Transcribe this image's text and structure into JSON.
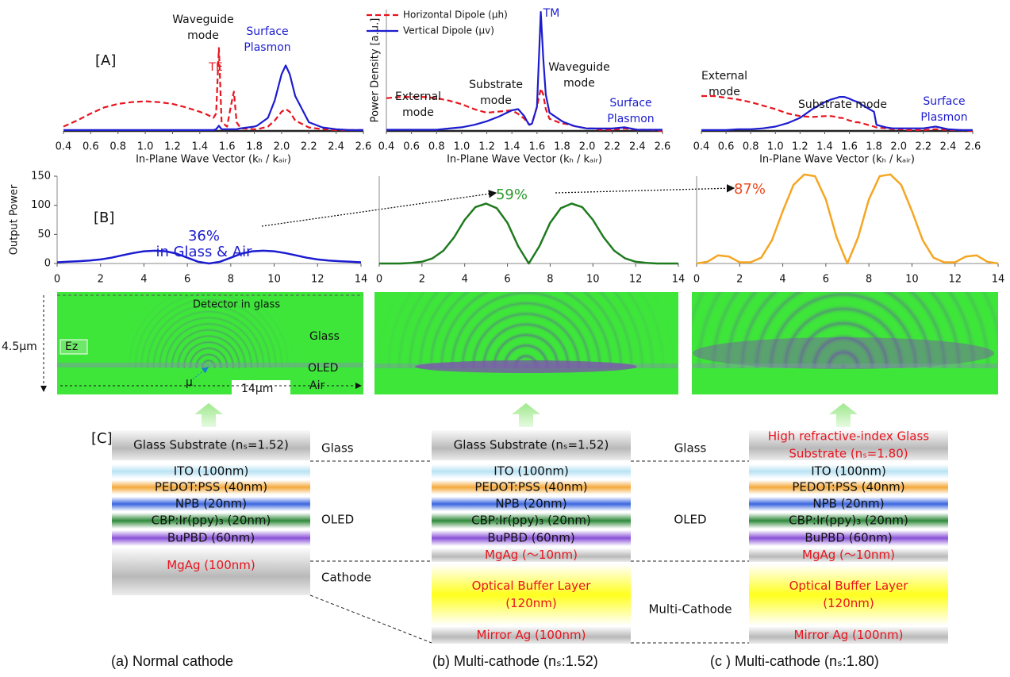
{
  "panel_labels": [
    "[A]",
    "[B]",
    "[C]"
  ],
  "chart_data": [
    {
      "type": "line",
      "xlabel": "In-Plane Wave Vector  (kₕ / kₐᵢᵣ)",
      "x": [
        0.4,
        0.5,
        0.6,
        0.7,
        0.8,
        0.9,
        1.0,
        1.1,
        1.2,
        1.3,
        1.4,
        1.45,
        1.5,
        1.52,
        1.54,
        1.56,
        1.6,
        1.63,
        1.65,
        1.67,
        1.7,
        1.8,
        1.82,
        1.9,
        1.95,
        2.0,
        2.03,
        2.06,
        2.1,
        2.2,
        2.3,
        2.4,
        2.5,
        2.6
      ],
      "xlim": [
        0.4,
        2.6
      ],
      "xticks": [
        0.4,
        0.6,
        0.8,
        {
          "value": 1,
          "label": "1.0"
        },
        1.2,
        1.4,
        1.6,
        1.8,
        {
          "value": 2,
          "label": "2.0"
        },
        2.2,
        2.4,
        2.6
      ],
      "ylim": [
        0,
        1
      ],
      "series": [
        {
          "color": "#e8141e",
          "dashed": true,
          "values": [
            0.05,
            0.12,
            0.2,
            0.27,
            0.31,
            0.33,
            0.34,
            0.33,
            0.31,
            0.27,
            0.22,
            0.19,
            0.15,
            0.2,
            0.95,
            0.1,
            0.05,
            0.3,
            0.45,
            0.1,
            0.03,
            0.02,
            0.02,
            0.05,
            0.12,
            0.22,
            0.25,
            0.22,
            0.12,
            0.04,
            0.02,
            0.01,
            0.01,
            0.01
          ]
        },
        {
          "color": "#1c1cd0",
          "dashed": false,
          "values": [
            0.01,
            0.01,
            0.01,
            0.01,
            0.01,
            0.01,
            0.01,
            0.01,
            0.01,
            0.01,
            0.01,
            0.01,
            0.01,
            0.02,
            0.06,
            0.02,
            0.02,
            0.02,
            0.02,
            0.02,
            0.03,
            0.05,
            0.06,
            0.15,
            0.35,
            0.65,
            0.75,
            0.65,
            0.4,
            0.1,
            0.04,
            0.02,
            0.01,
            0.01
          ]
        }
      ],
      "annotations": [
        {
          "lines": [
            "Waveguide",
            "mode"
          ],
          "color": "#111111"
        },
        {
          "lines": [
            "TE"
          ],
          "color": "#e8141e"
        },
        {
          "lines": [
            "Surface",
            "Plasmon"
          ],
          "color": "#1c1cd0"
        }
      ]
    },
    {
      "type": "line",
      "xlabel": "In-Plane Wave Vector  (kₕ / kₐᵢᵣ)",
      "ylabel": "Power Density [a.u.]",
      "show_y_axis": true,
      "legend": "upper left",
      "x": [
        0.4,
        0.5,
        0.6,
        0.7,
        0.8,
        0.9,
        1.0,
        1.1,
        1.2,
        1.3,
        1.4,
        1.45,
        1.5,
        1.52,
        1.54,
        1.56,
        1.6,
        1.63,
        1.65,
        1.67,
        1.7,
        1.8,
        1.82,
        1.9,
        1.95,
        2.0,
        2.03,
        2.06,
        2.1,
        2.2,
        2.3,
        2.4,
        2.5,
        2.6
      ],
      "xlim": [
        0.4,
        2.6
      ],
      "xticks": [
        0.4,
        0.6,
        0.8,
        {
          "value": 1,
          "label": "1.0"
        },
        1.2,
        1.4,
        1.6,
        1.8,
        {
          "value": 2,
          "label": "2.0"
        },
        2.2,
        2.4,
        2.6
      ],
      "ylim": [
        0,
        1
      ],
      "series": [
        {
          "name": "Horizontal Dipole (µh)",
          "color": "#e8141e",
          "dashed": true,
          "values": [
            0.27,
            0.28,
            0.28,
            0.28,
            0.27,
            0.25,
            0.22,
            0.18,
            0.15,
            0.16,
            0.17,
            0.14,
            0.1,
            0.07,
            0.05,
            0.06,
            0.2,
            0.35,
            0.3,
            0.18,
            0.1,
            0.06,
            0.06,
            0.04,
            0.03,
            0.02,
            0.02,
            0.02,
            0.01,
            0.01,
            0.02,
            0.01,
            0.01,
            0.0
          ]
        },
        {
          "name": "Vertical Dipole (µv)",
          "color": "#1c1cd0",
          "dashed": false,
          "values": [
            0.01,
            0.01,
            0.01,
            0.01,
            0.01,
            0.02,
            0.03,
            0.05,
            0.08,
            0.12,
            0.17,
            0.18,
            0.12,
            0.08,
            0.05,
            0.06,
            0.2,
            0.98,
            0.6,
            0.3,
            0.15,
            0.08,
            0.07,
            0.04,
            0.03,
            0.02,
            0.02,
            0.02,
            0.02,
            0.02,
            0.03,
            0.01,
            0.01,
            0.01
          ]
        }
      ],
      "annotations": [
        {
          "lines": [
            "TM"
          ],
          "color": "#1c1cd0"
        },
        {
          "lines": [
            "Waveguide",
            "mode"
          ],
          "color": "#111111"
        },
        {
          "lines": [
            "External",
            "mode"
          ],
          "color": "#111111"
        },
        {
          "lines": [
            "Substrate",
            "mode"
          ],
          "color": "#111111"
        },
        {
          "lines": [
            "Surface",
            "Plasmon"
          ],
          "color": "#1c1cd0"
        }
      ]
    },
    {
      "type": "line",
      "xlabel": "In-Plane Wave Vector  (kₕ / kₐᵢᵣ)",
      "x": [
        0.4,
        0.5,
        0.6,
        0.7,
        0.8,
        0.9,
        1.0,
        1.1,
        1.2,
        1.3,
        1.4,
        1.45,
        1.5,
        1.52,
        1.54,
        1.56,
        1.6,
        1.63,
        1.65,
        1.67,
        1.7,
        1.8,
        1.82,
        1.9,
        1.95,
        2.0,
        2.03,
        2.06,
        2.1,
        2.2,
        2.3,
        2.4,
        2.5,
        2.6
      ],
      "xlim": [
        0.4,
        2.6
      ],
      "xticks": [
        0.4,
        0.6,
        0.8,
        {
          "value": 1,
          "label": "1.0"
        },
        1.2,
        1.4,
        1.6,
        1.8,
        {
          "value": 2,
          "label": "2.0"
        },
        2.2,
        2.4,
        2.6
      ],
      "ylim": [
        0,
        1
      ],
      "series": [
        {
          "color": "#e8141e",
          "dashed": true,
          "values": [
            0.4,
            0.4,
            0.38,
            0.36,
            0.33,
            0.29,
            0.25,
            0.2,
            0.17,
            0.16,
            0.17,
            0.17,
            0.16,
            0.15,
            0.15,
            0.14,
            0.12,
            0.11,
            0.1,
            0.1,
            0.09,
            0.05,
            0.04,
            0.03,
            0.02,
            0.02,
            0.02,
            0.01,
            0.01,
            0.01,
            0.02,
            0.01,
            0.01,
            0.0
          ]
        },
        {
          "color": "#1c1cd0",
          "dashed": false,
          "values": [
            0.01,
            0.01,
            0.01,
            0.02,
            0.02,
            0.03,
            0.05,
            0.09,
            0.15,
            0.25,
            0.33,
            0.36,
            0.38,
            0.39,
            0.39,
            0.39,
            0.37,
            0.35,
            0.34,
            0.33,
            0.3,
            0.22,
            0.07,
            0.04,
            0.03,
            0.03,
            0.03,
            0.03,
            0.03,
            0.03,
            0.05,
            0.02,
            0.01,
            0.01
          ]
        }
      ],
      "annotations": [
        {
          "lines": [
            "External",
            "mode"
          ],
          "color": "#111111"
        },
        {
          "lines": [
            "Substrate mode"
          ],
          "color": "#111111"
        },
        {
          "lines": [
            "Surface",
            "Plasmon"
          ],
          "color": "#1c1cd0"
        }
      ]
    },
    {
      "type": "line",
      "ylabel": "Output Power",
      "show_y_axis": true,
      "x": [
        0,
        0.5,
        1,
        1.5,
        2,
        2.5,
        3,
        3.5,
        4,
        4.5,
        5,
        5.5,
        6,
        6.5,
        7,
        7.5,
        8,
        8.5,
        9,
        9.5,
        10,
        10.5,
        11,
        11.5,
        12,
        12.5,
        13,
        13.5,
        14
      ],
      "xlim": [
        0,
        14
      ],
      "xticks": [
        0,
        2,
        4,
        6,
        8,
        10,
        12,
        14
      ],
      "ylim": [
        0,
        150
      ],
      "yticks": [
        0,
        50,
        100,
        150
      ],
      "series": [
        {
          "color": "#1c1cd0",
          "dashed": false,
          "values": [
            2,
            3,
            4,
            5,
            7,
            10,
            14,
            18,
            21,
            22,
            21,
            17,
            10,
            3,
            0,
            3,
            10,
            17,
            21,
            22,
            21,
            18,
            14,
            10,
            7,
            5,
            4,
            3,
            2
          ]
        }
      ],
      "annotations": [
        {
          "lines": [
            "36%",
            "in Glass & Air"
          ],
          "color": "#1c1cd0"
        }
      ]
    },
    {
      "type": "line",
      "show_y_axis": true,
      "x": [
        0,
        0.5,
        1,
        1.5,
        2,
        2.5,
        3,
        3.5,
        4,
        4.5,
        5,
        5.5,
        6,
        6.5,
        7,
        7.5,
        8,
        8.5,
        9,
        9.5,
        10,
        10.5,
        11,
        11.5,
        12,
        12.5,
        13,
        13.5,
        14
      ],
      "xlim": [
        0,
        14
      ],
      "xticks": [
        0,
        2,
        4,
        6,
        8,
        10,
        12,
        14
      ],
      "ylim": [
        0,
        150
      ],
      "series": [
        {
          "color": "#1f7a1f",
          "dashed": false,
          "values": [
            0,
            0,
            0,
            1,
            3,
            9,
            22,
            45,
            75,
            97,
            103,
            95,
            70,
            30,
            0,
            30,
            70,
            95,
            103,
            97,
            75,
            45,
            22,
            9,
            3,
            1,
            0,
            0,
            0
          ]
        }
      ],
      "annotations": [
        {
          "lines": [
            "59%"
          ],
          "color": "#2e9a2e"
        }
      ]
    },
    {
      "type": "line",
      "show_y_axis": true,
      "x": [
        0,
        0.5,
        1,
        1.5,
        2,
        2.5,
        3,
        3.5,
        4,
        4.5,
        5,
        5.5,
        6,
        6.5,
        7,
        7.5,
        8,
        8.5,
        9,
        9.5,
        10,
        10.5,
        11,
        11.5,
        12,
        12.5,
        13,
        13.5,
        14
      ],
      "xlim": [
        0,
        14
      ],
      "xticks": [
        0,
        2,
        4,
        6,
        8,
        10,
        12,
        14
      ],
      "ylim": [
        0,
        150
      ],
      "series": [
        {
          "color": "#f5a623",
          "dashed": false,
          "values": [
            0,
            3,
            14,
            12,
            2,
            2,
            10,
            40,
            90,
            135,
            153,
            150,
            110,
            45,
            0,
            45,
            110,
            150,
            153,
            135,
            90,
            40,
            10,
            2,
            2,
            12,
            14,
            3,
            0
          ]
        }
      ],
      "annotations": [
        {
          "lines": [
            "87%"
          ],
          "color": "#f04a1e"
        }
      ]
    }
  ],
  "field_maps": {
    "labels": [
      "Detector in glass",
      "Glass",
      "Ez",
      "OLED",
      "Air",
      "µ",
      "4.5µm",
      "14µm"
    ]
  },
  "layer_stacks": [
    {
      "layers": [
        "Glass Substrate (nₛ=1.52)",
        "ITO (100nm)",
        "PEDOT:PSS (40nm)",
        "NPB (20nm)",
        "CBP:Ir(ppy)₃ (20nm)",
        "BuPBD (60nm)",
        "MgAg (100nm)"
      ]
    },
    {
      "layers": [
        "Glass Substrate  (nₛ=1.52)",
        "ITO (100nm)",
        "PEDOT:PSS (40nm)",
        "NPB (20nm)",
        "CBP:Ir(ppy)₃ (20nm)",
        "BuPBD (60nm)",
        "MgAg (～10nm)",
        [
          "Optical Buffer Layer",
          "(120nm)"
        ],
        "Mirror Ag (100nm)"
      ]
    },
    {
      "layers": [
        [
          "High refractive-index Glass",
          "Substrate  (nₛ=1.80)"
        ],
        "ITO (100nm)",
        "PEDOT:PSS (40nm)",
        "NPB (20nm)",
        "CBP:Ir(ppy)₃ (20nm)",
        "BuPBD (60nm)",
        "MgAg (～10nm)",
        [
          "Optical Buffer Layer",
          "(120nm)"
        ],
        "Mirror Ag (100nm)"
      ]
    }
  ],
  "stack_labels": {
    "left": [
      "Glass",
      "OLED",
      "Cathode"
    ],
    "right": [
      "Glass",
      "OLED",
      "Multi-Cathode"
    ]
  },
  "captions": [
    "(a)   Normal cathode",
    "(b) Multi-cathode (nₛ:1.52)",
    "(c ) Multi-cathode (nₛ:1.80)"
  ]
}
